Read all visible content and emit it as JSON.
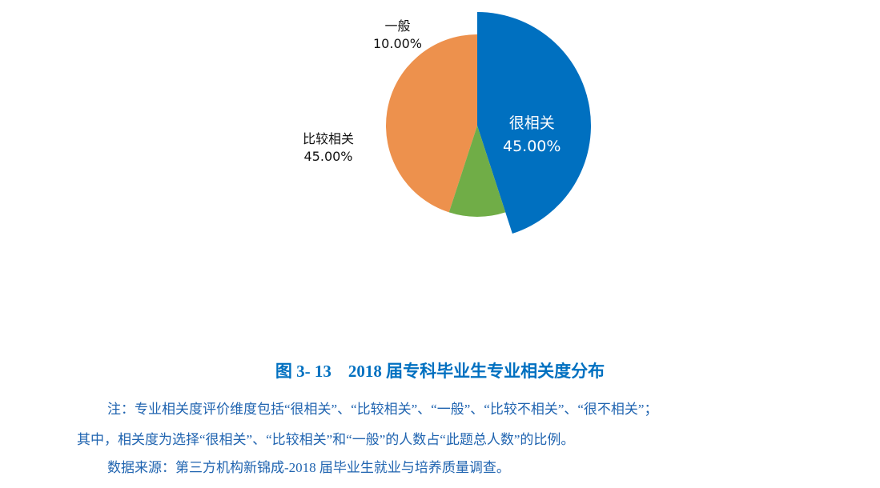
{
  "chart_data": {
    "type": "pie",
    "categories": [
      "很相关",
      "比较相关",
      "一般"
    ],
    "values": [
      45.0,
      45.0,
      10.0
    ],
    "value_labels": [
      "45.00%",
      "45.00%",
      "10.00%"
    ],
    "colors": [
      "#0070C0",
      "#ED914D",
      "#70AD47"
    ],
    "exploded": [
      "很相关"
    ],
    "start": "top, blue slice clockwise; others counterclockwise",
    "legend": "none (data labels)"
  },
  "caption": "图 3- 13　2018 届专科毕业生专业相关度分布",
  "notes": [
    "注：专业相关度评价维度包括“很相关”、“比较相关”、“一般”、“比较不相关”、“很不相关”；",
    "其中，相关度为选择“很相关”、“比较相关”和“一般”的人数占“此题总人数”的比例。",
    "数据来源：第三方机构新锦成-2018 届毕业生就业与培养质量调查。"
  ]
}
